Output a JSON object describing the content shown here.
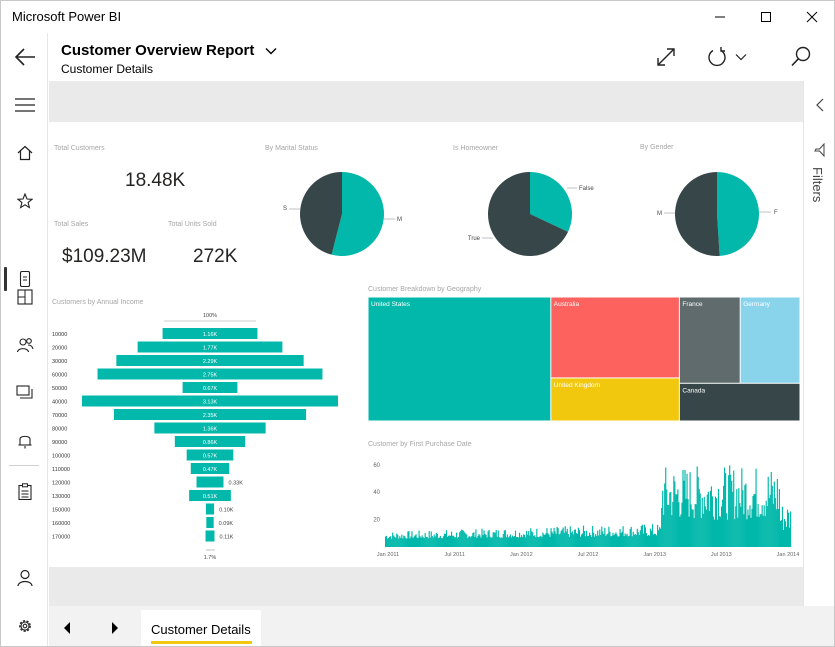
{
  "window": {
    "title": "Microsoft Power BI"
  },
  "header": {
    "report_title": "Customer Overview Report",
    "page_subtitle": "Customer Details"
  },
  "kpis": {
    "total_customers": {
      "title": "Total Customers",
      "value": "18.48K"
    },
    "total_sales": {
      "title": "Total Sales",
      "value": "$109.23M"
    },
    "total_units_sold": {
      "title": "Total Units Sold",
      "value": "272K"
    }
  },
  "filters": {
    "label": "Filters"
  },
  "footer": {
    "page_tab": "Customer Details"
  },
  "colors": {
    "teal": "#01b8aa",
    "dark": "#374649",
    "red": "#fd625e",
    "yellow": "#f2c80f",
    "gray": "#5f6b6d",
    "lightblue": "#8ad4eb",
    "accent": "#f2c811"
  },
  "chart_data": [
    {
      "type": "pie",
      "title": "By Marital Status",
      "labels": [
        "M",
        "S"
      ],
      "values": [
        54,
        46
      ]
    },
    {
      "type": "pie",
      "title": "Is Homeowner",
      "labels": [
        "False",
        "True"
      ],
      "values": [
        32,
        68
      ]
    },
    {
      "type": "pie",
      "title": "By Gender",
      "labels": [
        "F",
        "M"
      ],
      "values": [
        49,
        51
      ]
    },
    {
      "type": "bar",
      "orientation": "funnel",
      "title": "Customers by Annual Income",
      "top_label": "100%",
      "bottom_label": "1.7%",
      "categories": [
        "10000",
        "20000",
        "30000",
        "60000",
        "50000",
        "40000",
        "70000",
        "80000",
        "90000",
        "100000",
        "110000",
        "120000",
        "130000",
        "150000",
        "160000",
        "170000"
      ],
      "values": [
        1160,
        1770,
        2290,
        2750,
        670,
        3130,
        2350,
        1360,
        860,
        570,
        470,
        330,
        510,
        100,
        90,
        110
      ],
      "data_labels": [
        "1.16K",
        "1.77K",
        "2.29K",
        "2.75K",
        "0.67K",
        "3.13K",
        "2.35K",
        "1.36K",
        "0.86K",
        "0.57K",
        "0.47K",
        "0.33K",
        "0.51K",
        "0.10K",
        "0.09K",
        "0.11K"
      ]
    },
    {
      "type": "treemap",
      "title": "Customer Breakdown by Geography",
      "categories": [
        "United States",
        "Australia",
        "United Kingdom",
        "France",
        "Germany",
        "Canada"
      ],
      "values": [
        7820,
        3590,
        1910,
        1810,
        1780,
        1570
      ]
    },
    {
      "type": "bar",
      "title": "Customer by First Purchase Date",
      "x_tick_labels": [
        "Jan 2011",
        "Jul 2011",
        "Jan 2012",
        "Jul 2012",
        "Jan 2013",
        "Jul 2013",
        "Jan 2014"
      ],
      "y_ticks": [
        20,
        40,
        60
      ],
      "ylim": [
        0,
        65
      ],
      "description_values": {
        "before_jan_2013_range": [
          3,
          15
        ],
        "after_jan_2013_range": [
          20,
          62
        ]
      }
    }
  ]
}
